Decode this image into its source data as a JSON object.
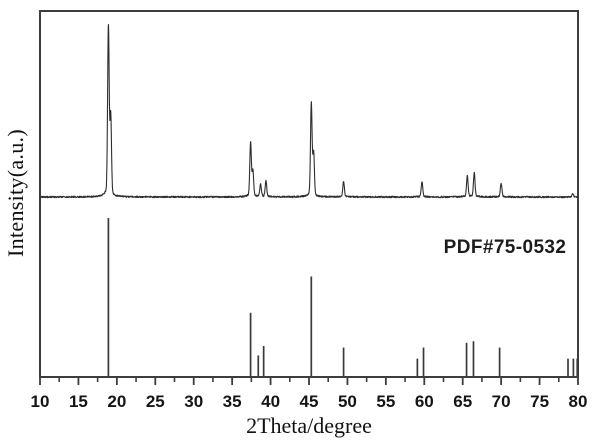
{
  "chart_data": {
    "type": "line",
    "chart_kind": "xrd-pattern-with-reference-sticks",
    "title": "",
    "xlabel": "2Theta/degree",
    "ylabel": "Intensity(a.u.)",
    "annotation": "PDF#75-0532",
    "xlim": [
      10,
      80
    ],
    "x_major_ticks": [
      10,
      15,
      20,
      25,
      30,
      35,
      40,
      45,
      50,
      55,
      60,
      65,
      70,
      75,
      80
    ],
    "x_minor_tick_step": 2.5,
    "grid": false,
    "legend": "none",
    "y_axis_ticks": "none (arbitrary units)",
    "series": [
      {
        "name": "measured XRD pattern",
        "style": "noisy line trace, upper half",
        "peaks": [
          {
            "two_theta": 18.9,
            "rel_intensity": 100,
            "ka2_shoulder": true
          },
          {
            "two_theta": 37.4,
            "rel_intensity": 32,
            "ka2_shoulder": true
          },
          {
            "two_theta": 38.7,
            "rel_intensity": 7
          },
          {
            "two_theta": 39.4,
            "rel_intensity": 9
          },
          {
            "two_theta": 45.3,
            "rel_intensity": 55,
            "ka2_shoulder": true
          },
          {
            "two_theta": 49.5,
            "rel_intensity": 9
          },
          {
            "two_theta": 59.7,
            "rel_intensity": 9
          },
          {
            "two_theta": 65.6,
            "rel_intensity": 12
          },
          {
            "two_theta": 66.5,
            "rel_intensity": 14
          },
          {
            "two_theta": 70.0,
            "rel_intensity": 8
          },
          {
            "two_theta": 79.3,
            "rel_intensity": 2
          }
        ]
      },
      {
        "name": "reference pattern PDF#75-0532",
        "style": "vertical sticks from x-axis, lower half",
        "peaks": [
          {
            "two_theta": 18.9,
            "rel_intensity": 100
          },
          {
            "two_theta": 37.4,
            "rel_intensity": 40
          },
          {
            "two_theta": 38.4,
            "rel_intensity": 13
          },
          {
            "two_theta": 39.1,
            "rel_intensity": 19
          },
          {
            "two_theta": 45.3,
            "rel_intensity": 63
          },
          {
            "two_theta": 49.5,
            "rel_intensity": 18
          },
          {
            "two_theta": 59.1,
            "rel_intensity": 11
          },
          {
            "two_theta": 59.9,
            "rel_intensity": 18
          },
          {
            "two_theta": 65.5,
            "rel_intensity": 21
          },
          {
            "two_theta": 66.4,
            "rel_intensity": 22
          },
          {
            "two_theta": 69.8,
            "rel_intensity": 18
          },
          {
            "two_theta": 78.7,
            "rel_intensity": 11
          },
          {
            "two_theta": 79.4,
            "rel_intensity": 11
          },
          {
            "two_theta": 79.9,
            "rel_intensity": 11
          }
        ]
      }
    ],
    "colors": {
      "trace": "#2e2e2e",
      "sticks": "#3a3a3a",
      "frame": "#3d3d3d",
      "text": "#111111"
    }
  }
}
